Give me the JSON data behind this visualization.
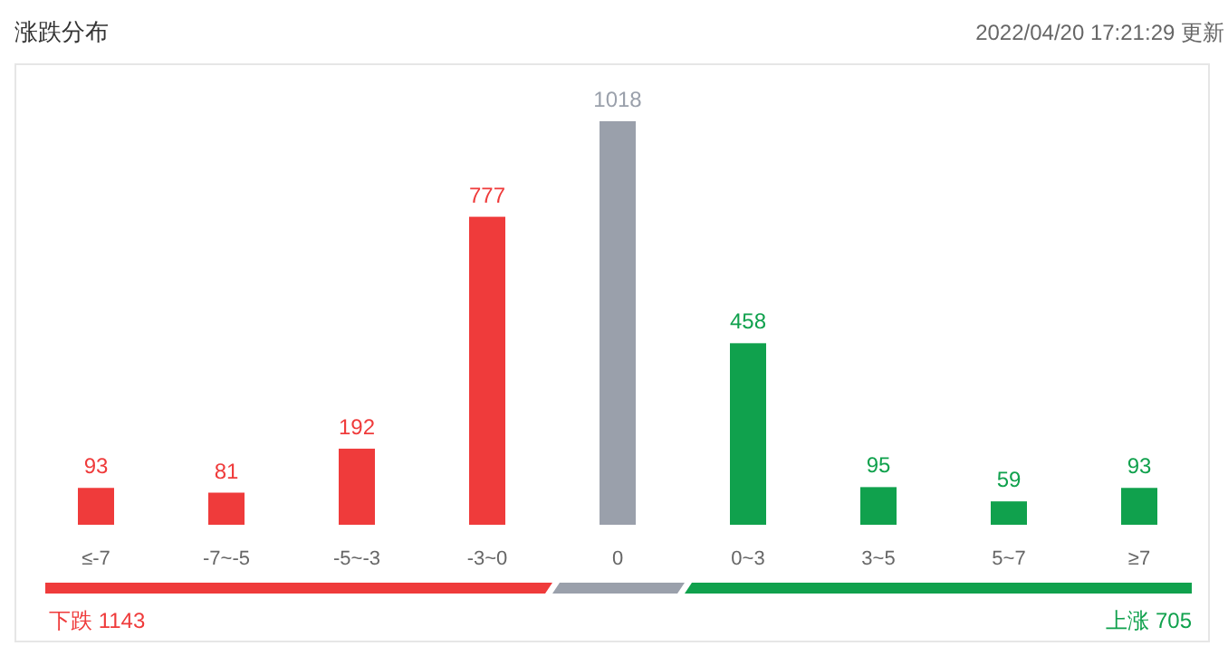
{
  "chart_data": {
    "type": "bar",
    "title": "涨跌分布",
    "categories": [
      "≤-7",
      "-7~-5",
      "-5~-3",
      "-3~0",
      "0",
      "0~3",
      "3~5",
      "5~7",
      "≥7"
    ],
    "values": [
      93,
      81,
      192,
      777,
      1018,
      458,
      95,
      59,
      93
    ],
    "colors": [
      "#ef3b3b",
      "#ef3b3b",
      "#ef3b3b",
      "#ef3b3b",
      "#9aa0ab",
      "#10a14d",
      "#10a14d",
      "#10a14d",
      "#10a14d"
    ],
    "data_labels": true,
    "annotations": [
      "2022/04/20 17:21:29  更新",
      "下跌 1143",
      "上涨 705"
    ]
  }
}
